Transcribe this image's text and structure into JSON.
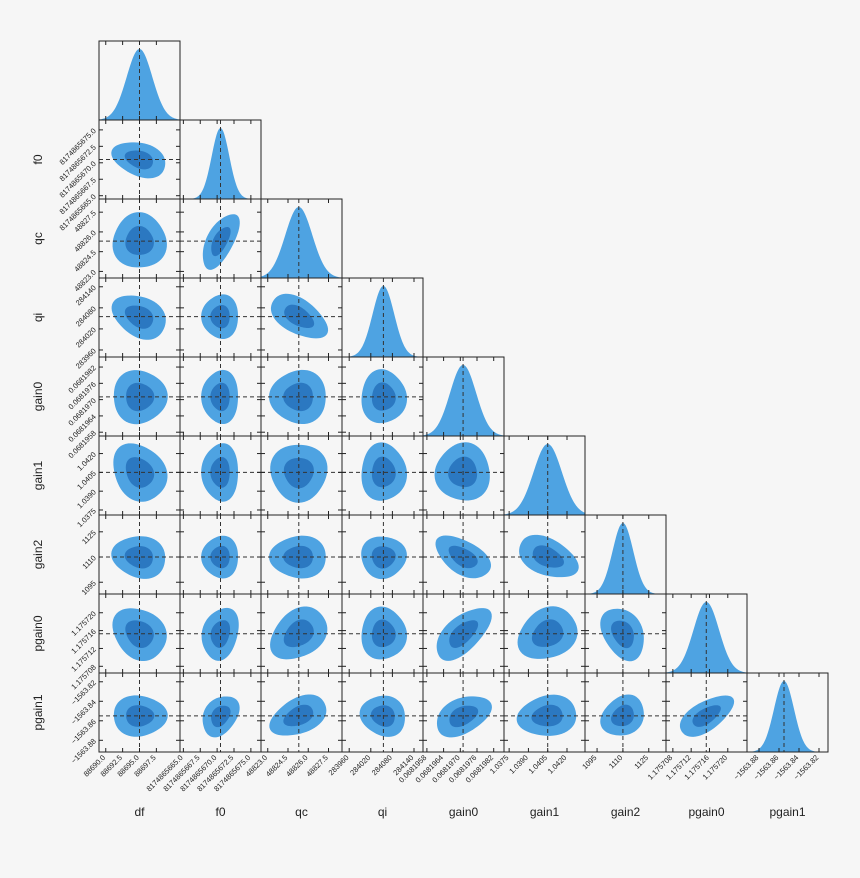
{
  "chart_data": {
    "type": "corner",
    "light_color": "#4ea3e2",
    "dark_color": "#2b78c1",
    "truth_color": "#333333",
    "parameters": [
      {
        "name": "df",
        "lim": [
          88689,
          88701
        ],
        "truth": 88695,
        "sigma": 1.9,
        "ticks": [
          {
            "value": 88690,
            "label": "88690.0"
          },
          {
            "value": 88692.5,
            "label": "88692.5"
          },
          {
            "value": 88695,
            "label": "88695.0"
          },
          {
            "value": 88697.5,
            "label": "88697.5"
          }
        ]
      },
      {
        "name": "f0",
        "lim": [
          8174865664.5,
          8174865676.5
        ],
        "truth": 8174865670.5,
        "sigma": 1.3,
        "ticks": [
          {
            "value": 8174865665,
            "label": "8174865665.0"
          },
          {
            "value": 8174865667.5,
            "label": "8174865667.5"
          },
          {
            "value": 8174865670,
            "label": "8174865670.0"
          },
          {
            "value": 8174865672.5,
            "label": "8174865672.5"
          },
          {
            "value": 8174865675,
            "label": "8174865675.0"
          }
        ]
      },
      {
        "name": "qc",
        "lim": [
          48822.5,
          48828.5
        ],
        "truth": 48825.3,
        "sigma": 1.0,
        "ticks": [
          {
            "value": 48823,
            "label": "48823.0"
          },
          48824.5,
          {
            "value": 48826,
            "label": "48826.0"
          },
          48827.5
        ]
      },
      {
        "name": "qi",
        "lim": [
          283940,
          284165
        ],
        "truth": 284055,
        "sigma": 30,
        "ticks": [
          283960,
          284020,
          284080,
          284140
        ]
      },
      {
        "name": "gain0",
        "lim": [
          0.06819566,
          0.06819857
        ],
        "truth": 0.0681971,
        "sigma": 4.7e-07,
        "ticks": [
          0.0681958,
          0.0681964,
          {
            "value": 0.068197,
            "label": "0.0681970"
          },
          0.0681976,
          0.0681982
        ]
      },
      {
        "name": "gain1",
        "lim": [
          1.0371,
          1.0434
        ],
        "truth": 1.0405,
        "sigma": 0.0011,
        "ticks": [
          1.0375,
          {
            "value": 1.039,
            "label": "1.0390"
          },
          1.0405,
          {
            "value": 1.042,
            "label": "1.0420"
          }
        ]
      },
      {
        "name": "gain2",
        "lim": [
          1088,
          1135
        ],
        "truth": 1110,
        "sigma": 6,
        "ticks": [
          1095,
          1110,
          1125
        ]
      },
      {
        "name": "pgain0",
        "lim": [
          1.1757065,
          1.1757242
        ],
        "truth": 1.1757153,
        "sigma": 2.8e-06,
        "ticks": [
          1.175708,
          1.175712,
          1.175716,
          {
            "value": 1.17572,
            "label": "1.175720"
          }
        ]
      },
      {
        "name": "pgain1",
        "lim": [
          -1563.892,
          -1563.811
        ],
        "truth": -1563.855,
        "sigma": 0.01,
        "ticks": [
          {
            "value": -1563.88,
            "label": "−1563.88"
          },
          {
            "value": -1563.86,
            "label": "−1563.86"
          },
          {
            "value": -1563.84,
            "label": "−1563.84"
          },
          {
            "value": -1563.82,
            "label": "−1563.82"
          }
        ]
      }
    ],
    "correlations": [
      [],
      [
        -0.3
      ],
      [
        0,
        0.6
      ],
      [
        -0.3,
        0,
        -0.5
      ],
      [
        0,
        0,
        0,
        0
      ],
      [
        -0.2,
        0,
        0,
        0,
        0
      ],
      [
        -0.1,
        0,
        0,
        0,
        -0.5,
        -0.4
      ],
      [
        -0.2,
        0.2,
        0.3,
        0,
        0.6,
        0.2,
        -0.3
      ],
      [
        0,
        0.3,
        0.4,
        -0.1,
        0.4,
        0.1,
        0.2,
        0.6
      ]
    ]
  }
}
